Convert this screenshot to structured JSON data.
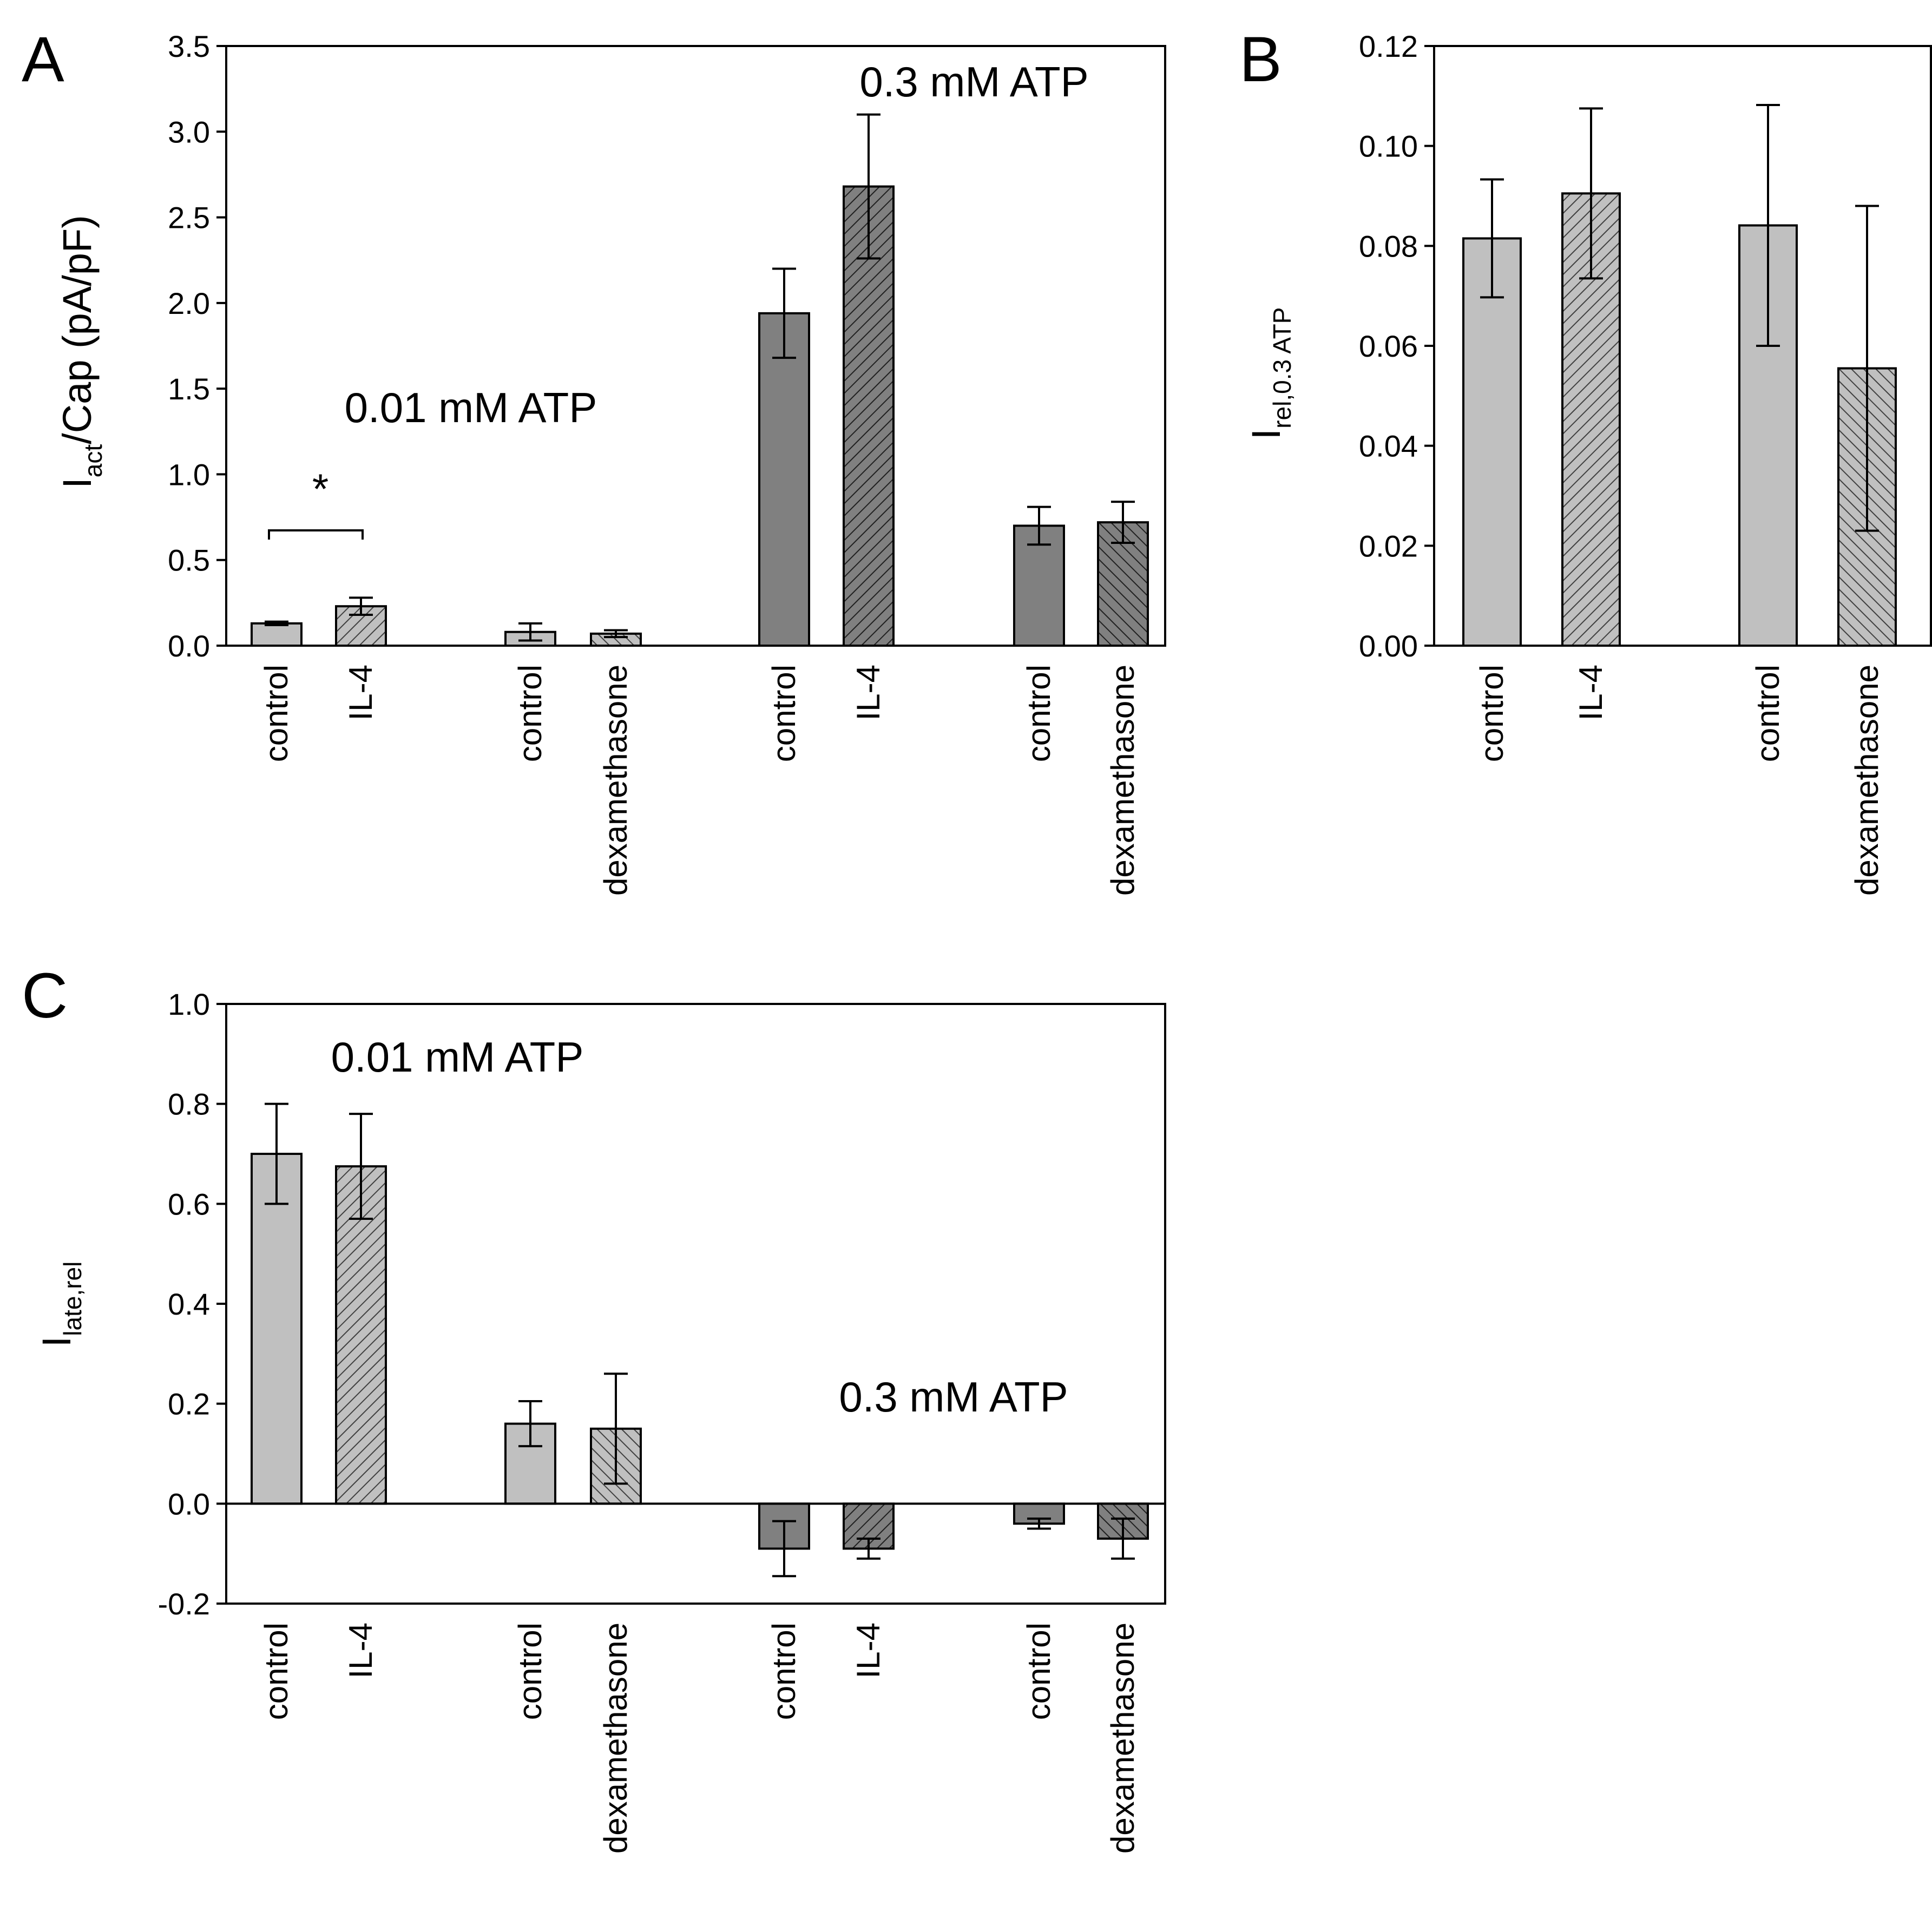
{
  "colors": {
    "light_bar": "#c0c0c0",
    "dark_bar": "#808080",
    "hatch_light_line": "#404040",
    "hatch_dark_line": "#202020",
    "axis": "#000000"
  },
  "chart_data": [
    {
      "id": "A",
      "panel_label": "A",
      "type": "bar",
      "ylabel": {
        "main": "I",
        "sub": "act",
        "rest": "/Cap (pA/pF)"
      },
      "ylim": [
        0,
        3.5
      ],
      "yticks": [
        "0.0",
        "0.5",
        "1.0",
        "1.5",
        "2.0",
        "2.5",
        "3.0",
        "3.5"
      ],
      "tick_values": [
        0,
        0.5,
        1.0,
        1.5,
        2.0,
        2.5,
        3.0,
        3.5
      ],
      "categories": [
        "control",
        "IL-4",
        "control",
        "dexamethasone",
        "control",
        "IL-4",
        "control",
        "dexamethasone"
      ],
      "bars": [
        {
          "label": "control",
          "value": 0.13,
          "err": 0.01,
          "fill": "light",
          "hatch": "none"
        },
        {
          "label": "IL-4",
          "value": 0.23,
          "err": 0.05,
          "fill": "light",
          "hatch": "forward"
        },
        {
          "label": "control",
          "value": 0.08,
          "err": 0.05,
          "fill": "light",
          "hatch": "none"
        },
        {
          "label": "dexamethasone",
          "value": 0.07,
          "err": 0.02,
          "fill": "light",
          "hatch": "back"
        },
        {
          "label": "control",
          "value": 1.94,
          "err": 0.26,
          "fill": "dark",
          "hatch": "none"
        },
        {
          "label": "IL-4",
          "value": 2.68,
          "err": 0.42,
          "fill": "dark",
          "hatch": "forward"
        },
        {
          "label": "control",
          "value": 0.7,
          "err": 0.11,
          "fill": "dark",
          "hatch": "none"
        },
        {
          "label": "dexamethasone",
          "value": 0.72,
          "err": 0.12,
          "fill": "dark",
          "hatch": "back"
        }
      ],
      "annotations": [
        "0.01 mM ATP",
        "0.3 mM ATP"
      ],
      "significance": "*"
    },
    {
      "id": "B",
      "panel_label": "B",
      "type": "bar",
      "ylabel": {
        "main": "I",
        "sub": "rel,0.3 ATP",
        "rest": ""
      },
      "ylim": [
        0,
        0.12
      ],
      "yticks": [
        "0.00",
        "0.02",
        "0.04",
        "0.06",
        "0.08",
        "0.10",
        "0.12"
      ],
      "tick_values": [
        0,
        0.02,
        0.04,
        0.06,
        0.08,
        0.1,
        0.12
      ],
      "categories": [
        "control",
        "IL-4",
        "control",
        "dexamethasone"
      ],
      "bars": [
        {
          "label": "control",
          "value": 0.0815,
          "err": 0.0118,
          "fill": "light",
          "hatch": "none"
        },
        {
          "label": "IL-4",
          "value": 0.0905,
          "err": 0.017,
          "fill": "light",
          "hatch": "forward"
        },
        {
          "label": "control",
          "value": 0.0841,
          "err": 0.0241,
          "fill": "light",
          "hatch": "none"
        },
        {
          "label": "dexamethasone",
          "value": 0.0555,
          "err": 0.0325,
          "fill": "light",
          "hatch": "back"
        }
      ]
    },
    {
      "id": "C",
      "panel_label": "C",
      "type": "bar",
      "ylabel": {
        "main": "I",
        "sub": "late,rel",
        "rest": ""
      },
      "ylim": [
        -0.2,
        1.0
      ],
      "yticks": [
        "-0.2",
        "0.0",
        "0.2",
        "0.4",
        "0.6",
        "0.8",
        "1.0"
      ],
      "tick_values": [
        -0.2,
        0.0,
        0.2,
        0.4,
        0.6,
        0.8,
        1.0
      ],
      "categories": [
        "control",
        "IL-4",
        "control",
        "dexamethasone",
        "control",
        "IL-4",
        "control",
        "dexamethasone"
      ],
      "bars": [
        {
          "label": "control",
          "value": 0.7,
          "err": 0.1,
          "fill": "light",
          "hatch": "none"
        },
        {
          "label": "IL-4",
          "value": 0.675,
          "err": 0.105,
          "fill": "light",
          "hatch": "forward"
        },
        {
          "label": "control",
          "value": 0.16,
          "err": 0.045,
          "fill": "light",
          "hatch": "none"
        },
        {
          "label": "dexamethasone",
          "value": 0.15,
          "err": 0.11,
          "fill": "light",
          "hatch": "back"
        },
        {
          "label": "control",
          "value": -0.09,
          "err": 0.055,
          "fill": "dark",
          "hatch": "none"
        },
        {
          "label": "IL-4",
          "value": -0.09,
          "err": 0.02,
          "fill": "dark",
          "hatch": "forward"
        },
        {
          "label": "control",
          "value": -0.04,
          "err": 0.01,
          "fill": "dark",
          "hatch": "none"
        },
        {
          "label": "dexamethasone",
          "value": -0.07,
          "err": 0.04,
          "fill": "dark",
          "hatch": "back"
        }
      ],
      "annotations": [
        "0.01 mM ATP",
        "0.3 mM ATP"
      ]
    }
  ]
}
